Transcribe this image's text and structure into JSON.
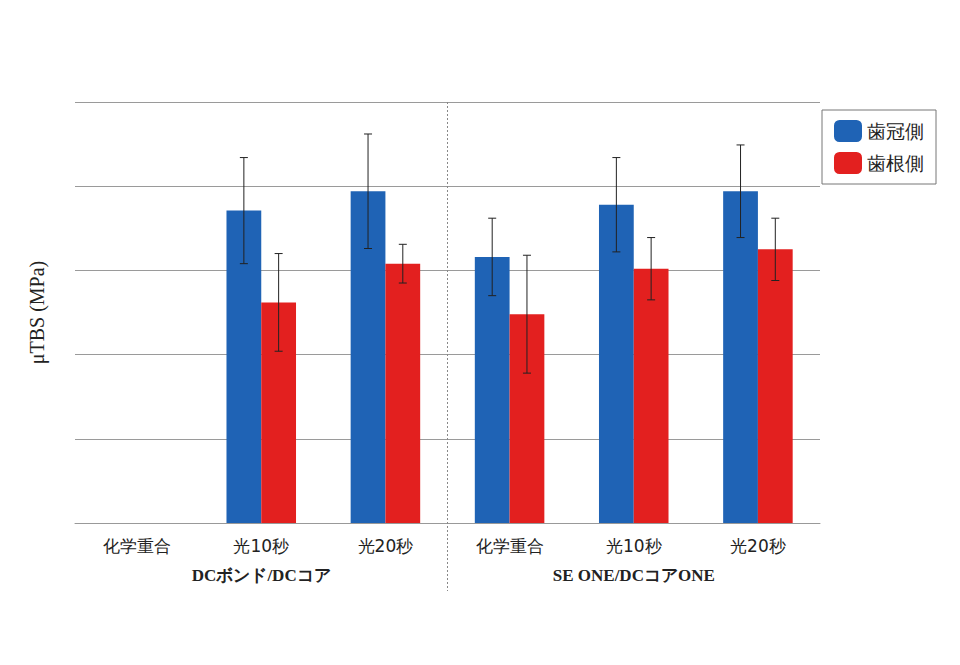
{
  "chart_data": {
    "type": "bar",
    "y_label": "μTBS (MPa)",
    "categories": [
      "化学重合",
      "光10秒",
      "光20秒",
      "化学重合",
      "光10秒",
      "光20秒"
    ],
    "category_groups": [
      "DCボンド/DCコア",
      "DCボンド/DCコア",
      "DCボンド/DCコア",
      "SE ONE/DCコアONE",
      "SE ONE/DCコアONE",
      "SE ONE/DCコアONE"
    ],
    "series": [
      {
        "name": "歯冠側",
        "color": "#1f63b5",
        "values": [
          null,
          37.1,
          39.4,
          31.6,
          37.8,
          39.4
        ],
        "errors": [
          null,
          6.3,
          6.8,
          4.6,
          5.6,
          5.5
        ]
      },
      {
        "name": "歯根側",
        "color": "#e3201f",
        "values": [
          null,
          26.2,
          30.8,
          24.8,
          30.2,
          32.5
        ],
        "errors": [
          null,
          5.8,
          2.3,
          7.0,
          3.7,
          3.7
        ]
      }
    ],
    "ylim": [
      0,
      50
    ],
    "yticks": [
      0,
      10,
      20,
      30,
      40,
      50
    ],
    "grid": true,
    "tick_labels": "x",
    "legend": "upper right"
  }
}
